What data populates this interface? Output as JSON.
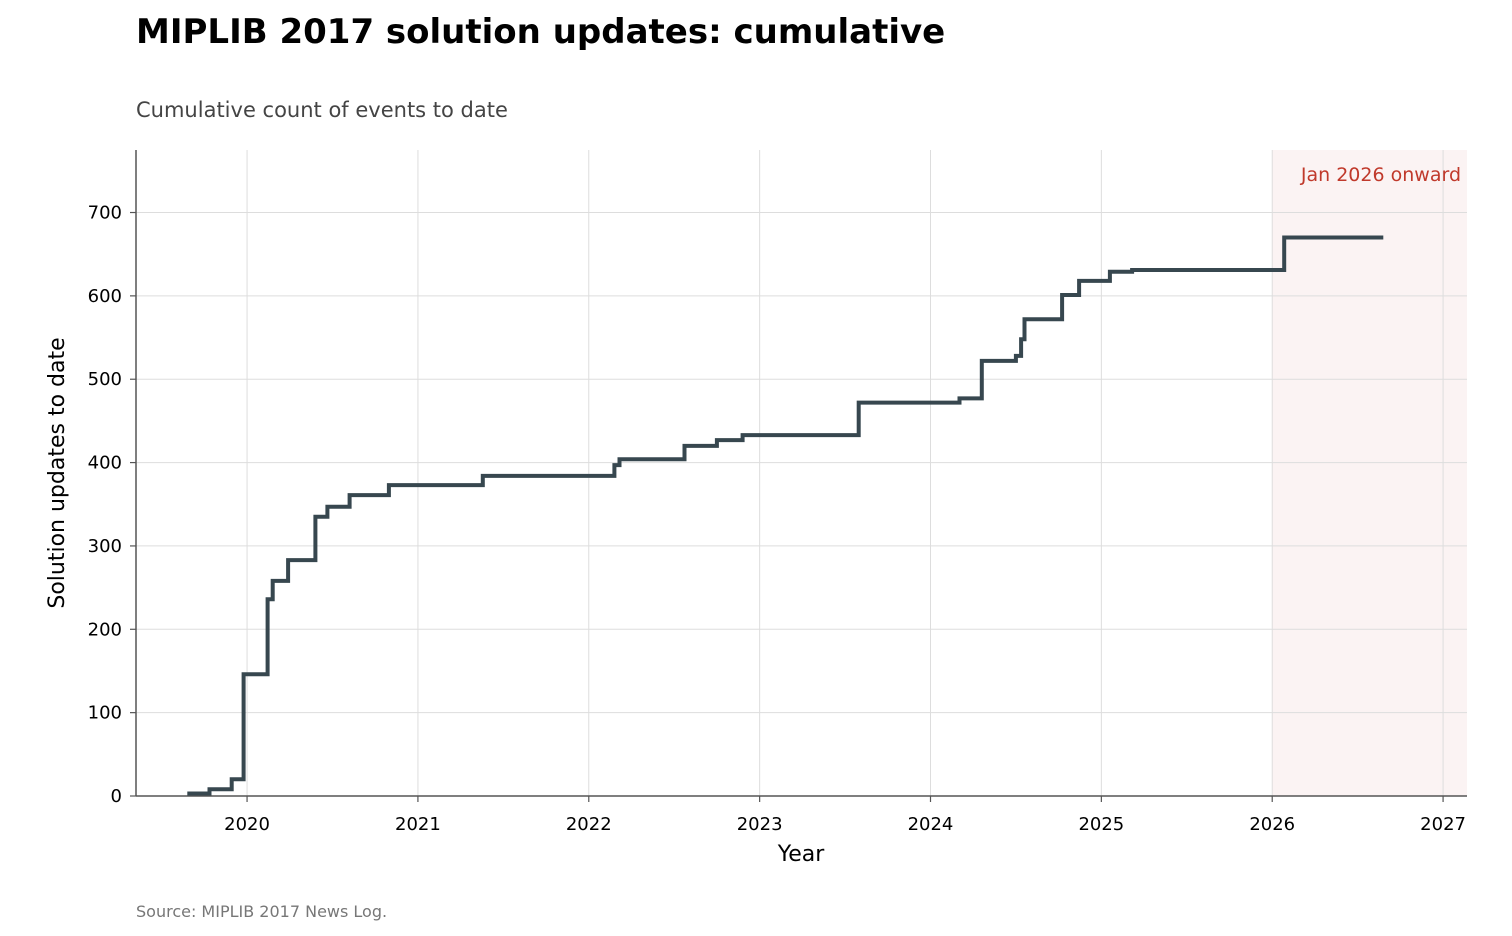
{
  "chart_data": {
    "type": "line",
    "step": "post",
    "title": "MIPLIB 2017 solution updates: cumulative",
    "subtitle": "Cumulative count of events to date",
    "xlabel": "Year",
    "ylabel": "Solution updates to date",
    "source": "Source: MIPLIB 2017 News Log.",
    "xlim": [
      2019.35,
      2027.14
    ],
    "ylim": [
      0,
      775
    ],
    "xticks": [
      2020,
      2021,
      2022,
      2023,
      2024,
      2025,
      2026,
      2027
    ],
    "yticks": [
      0,
      100,
      200,
      300,
      400,
      500,
      600,
      700
    ],
    "grid": true,
    "highlight": {
      "label": "Jan 2026 onward",
      "start": 2026.0,
      "end": 2027.14,
      "color": "#c0392b"
    },
    "series": [
      {
        "color": "#37474f",
        "points": [
          [
            2019.65,
            3
          ],
          [
            2019.78,
            8
          ],
          [
            2019.91,
            20
          ],
          [
            2019.98,
            146
          ],
          [
            2020.12,
            236
          ],
          [
            2020.15,
            258
          ],
          [
            2020.24,
            283
          ],
          [
            2020.4,
            335
          ],
          [
            2020.47,
            347
          ],
          [
            2020.6,
            361
          ],
          [
            2020.83,
            373
          ],
          [
            2021.38,
            384
          ],
          [
            2022.15,
            397
          ],
          [
            2022.18,
            404
          ],
          [
            2022.56,
            420
          ],
          [
            2022.75,
            427
          ],
          [
            2022.9,
            433
          ],
          [
            2023.58,
            472
          ],
          [
            2024.17,
            477
          ],
          [
            2024.3,
            522
          ],
          [
            2024.5,
            528
          ],
          [
            2024.53,
            548
          ],
          [
            2024.55,
            572
          ],
          [
            2024.77,
            601
          ],
          [
            2024.87,
            618
          ],
          [
            2025.05,
            629
          ],
          [
            2025.18,
            631
          ],
          [
            2026.07,
            670
          ],
          [
            2026.65,
            670
          ]
        ]
      }
    ]
  }
}
